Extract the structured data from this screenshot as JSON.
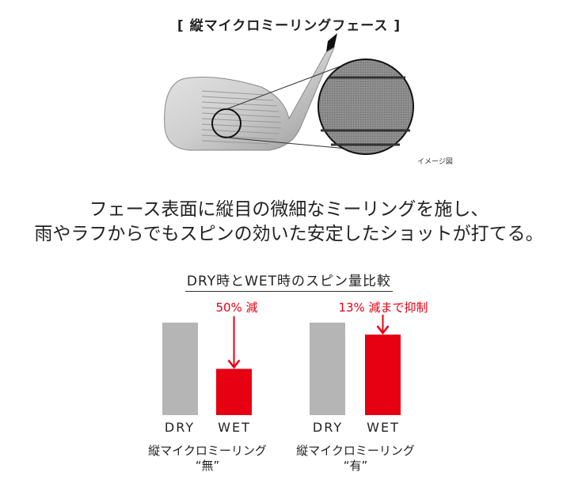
{
  "header": {
    "title": "[ 縦マイクロミーリングフェース ]",
    "image_note": "イメージ図"
  },
  "lead": {
    "line1": "フェース表面に縦目の微細なミーリングを施し、",
    "line2": "雨やラフからでもスピンの効いた安定したショットが打てる。"
  },
  "colors": {
    "dry": "#b5b5b5",
    "wet": "#e60012",
    "annotation": "#e60012"
  },
  "chart_data": {
    "type": "bar",
    "title": "DRY時とWET時のスピン量比較",
    "categories": [
      "DRY",
      "WET"
    ],
    "groups": [
      {
        "caption_line1": "縦マイクロミーリング",
        "caption_line2": "“無”",
        "values": [
          100,
          50
        ],
        "annotation": "50% 減"
      },
      {
        "caption_line1": "縦マイクロミーリング",
        "caption_line2": "“有”",
        "values": [
          100,
          87
        ],
        "annotation": "13% 減まで抑制"
      }
    ],
    "ylim": [
      0,
      100
    ]
  }
}
